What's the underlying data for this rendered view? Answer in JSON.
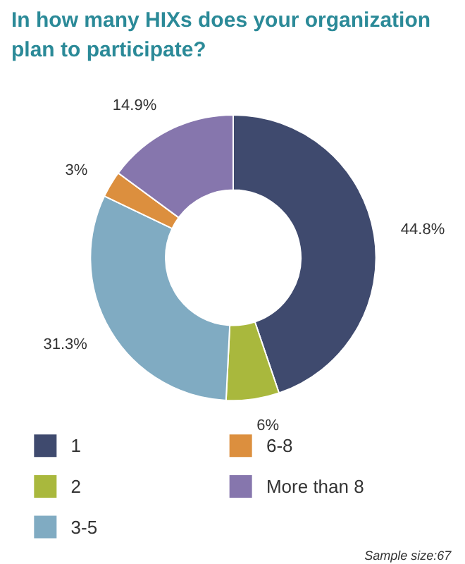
{
  "chart_data": {
    "type": "donut",
    "title": "In how many HIXs does your organization plan to participate?",
    "categories": [
      "1",
      "2",
      "3-5",
      "6-8",
      "More than 8"
    ],
    "values": [
      44.8,
      6,
      31.3,
      3,
      14.9
    ],
    "colors": [
      "#3f4a6e",
      "#a9b83d",
      "#80abc2",
      "#dc8f3e",
      "#8676ad"
    ],
    "value_labels": [
      "44.8%",
      "6%",
      "31.3%",
      "3%",
      "14.9%"
    ],
    "legend": "bottom",
    "annotations": [
      "Sample size:67"
    ]
  }
}
